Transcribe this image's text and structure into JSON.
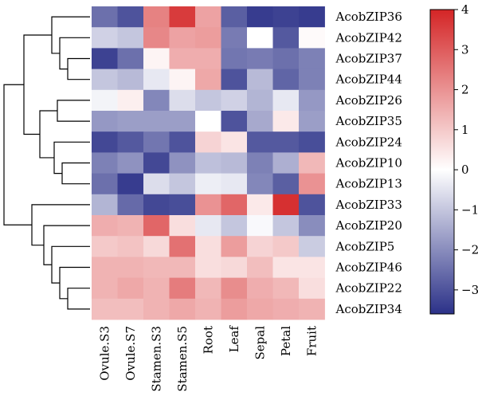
{
  "chart_data": {
    "type": "heatmap",
    "title": "",
    "xlabel": "",
    "ylabel": "",
    "columns": [
      "Ovule.S3",
      "Ovule.S7",
      "Stamen.S3",
      "Stamen.S5",
      "Root",
      "Leaf",
      "Sepal",
      "Petal",
      "Fruit"
    ],
    "rows": [
      "AcobZIP36",
      "AcobZIP42",
      "AcobZIP37",
      "AcobZIP44",
      "AcobZIP26",
      "AcobZIP35",
      "AcobZIP24",
      "AcobZIP10",
      "AcobZIP13",
      "AcobZIP33",
      "AcobZIP20",
      "AcobZIP5",
      "AcobZIP46",
      "AcobZIP22",
      "AcobZIP34"
    ],
    "values": [
      [
        -2.5,
        -3.0,
        2.3,
        3.6,
        1.7,
        -2.8,
        -3.4,
        -3.3,
        -3.4
      ],
      [
        -0.8,
        -1.0,
        2.2,
        1.7,
        1.8,
        -2.3,
        0.0,
        -2.9,
        0.1
      ],
      [
        -3.3,
        -2.5,
        0.2,
        1.5,
        1.5,
        -2.4,
        -2.3,
        -2.5,
        -2.2
      ],
      [
        -1.0,
        -1.2,
        -0.4,
        0.2,
        1.6,
        -3.0,
        -1.2,
        -2.7,
        -2.2
      ],
      [
        -0.2,
        0.3,
        -2.1,
        -0.6,
        -1.0,
        -0.8,
        -1.3,
        -0.4,
        -1.8
      ],
      [
        -1.8,
        -1.7,
        -1.7,
        -1.7,
        0.0,
        -3.0,
        -1.5,
        0.4,
        -1.7
      ],
      [
        -3.2,
        -2.9,
        -2.4,
        -3.0,
        0.8,
        0.5,
        -2.9,
        -2.9,
        -3.1
      ],
      [
        -2.2,
        -1.9,
        -3.2,
        -1.9,
        -1.1,
        -1.2,
        -2.2,
        -1.4,
        1.3
      ],
      [
        -2.5,
        -3.4,
        -0.6,
        -1.0,
        -0.3,
        -0.4,
        -2.1,
        -2.8,
        2.0
      ],
      [
        -1.3,
        -2.6,
        -3.2,
        -3.1,
        2.0,
        2.8,
        0.4,
        3.8,
        -3.0
      ],
      [
        1.5,
        1.4,
        2.8,
        0.6,
        -0.4,
        -1.0,
        -0.1,
        -1.0,
        -2.0
      ],
      [
        1.0,
        1.1,
        0.7,
        2.6,
        0.6,
        1.8,
        0.8,
        1.0,
        -0.9
      ],
      [
        1.4,
        1.4,
        1.3,
        1.3,
        0.6,
        0.7,
        1.2,
        0.5,
        0.5
      ],
      [
        1.4,
        1.6,
        1.4,
        2.4,
        1.3,
        2.1,
        1.5,
        1.3,
        0.6
      ],
      [
        1.2,
        1.2,
        1.4,
        1.6,
        1.4,
        1.8,
        1.6,
        1.5,
        1.4
      ]
    ],
    "color_scale": {
      "min": -3.6,
      "max": 4,
      "low": "#2b3188",
      "mid": "#ffffff",
      "high": "#d42526"
    },
    "colorbar_ticks": [
      4,
      3,
      2,
      1,
      0,
      -1,
      -2,
      -3
    ],
    "dendrogram": "rows"
  }
}
